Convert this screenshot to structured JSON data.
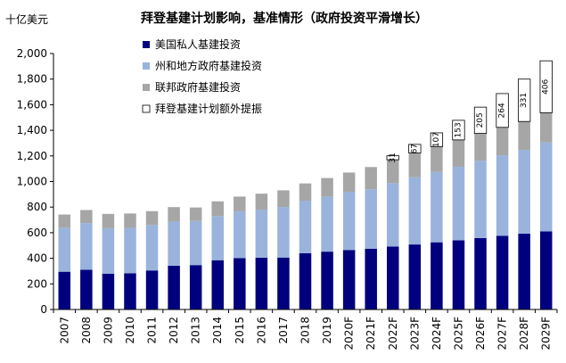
{
  "chart_data": {
    "type": "bar",
    "stacked": true,
    "title": "拜登基建计划影响，基准情形（政府投资平滑增长）",
    "unit_label": "十亿美元",
    "categories": [
      "2007",
      "2008",
      "2009",
      "2010",
      "2011",
      "2012",
      "2013",
      "2014",
      "2015",
      "2016",
      "2017",
      "2018",
      "2019",
      "2020F",
      "2021F",
      "2022F",
      "2023F",
      "2024F",
      "2025F",
      "2026F",
      "2027F",
      "2028F",
      "2029F"
    ],
    "ylim": [
      0,
      2000
    ],
    "yticks": [
      "0",
      "200",
      "400",
      "600",
      "800",
      "1,000",
      "1,200",
      "1,400",
      "1,600",
      "1,800",
      "2,000"
    ],
    "grid": false,
    "legend_position": "top-left",
    "series": [
      {
        "name": "美国私人基建投资",
        "color": "#00007f",
        "values": [
          295,
          310,
          280,
          283,
          305,
          342,
          347,
          385,
          402,
          405,
          406,
          440,
          452,
          465,
          475,
          492,
          508,
          525,
          540,
          558,
          575,
          592,
          610
        ]
      },
      {
        "name": "州和地方政府基建投资",
        "color": "#99b3dc",
        "values": [
          345,
          365,
          355,
          355,
          355,
          345,
          345,
          345,
          365,
          375,
          395,
          410,
          430,
          455,
          465,
          495,
          525,
          550,
          575,
          605,
          630,
          655,
          695
        ]
      },
      {
        "name": "联邦政府基建投资",
        "color": "#a6a6a6",
        "values": [
          102,
          102,
          112,
          112,
          108,
          113,
          105,
          115,
          115,
          125,
          130,
          135,
          145,
          150,
          173,
          183,
          190,
          198,
          210,
          213,
          218,
          222,
          232
        ]
      },
      {
        "name": "拜登基建计划额外提振",
        "color": "#ffffff",
        "values": [
          0,
          0,
          0,
          0,
          0,
          0,
          0,
          0,
          0,
          0,
          0,
          0,
          0,
          0,
          0,
          31,
          67,
          107,
          153,
          205,
          264,
          331,
          406
        ],
        "labels": [
          "",
          "",
          "",
          "",
          "",
          "",
          "",
          "",
          "",
          "",
          "",
          "",
          "",
          "",
          "",
          "31",
          "67",
          "107",
          "153",
          "205",
          "264",
          "331",
          "406"
        ]
      }
    ]
  }
}
